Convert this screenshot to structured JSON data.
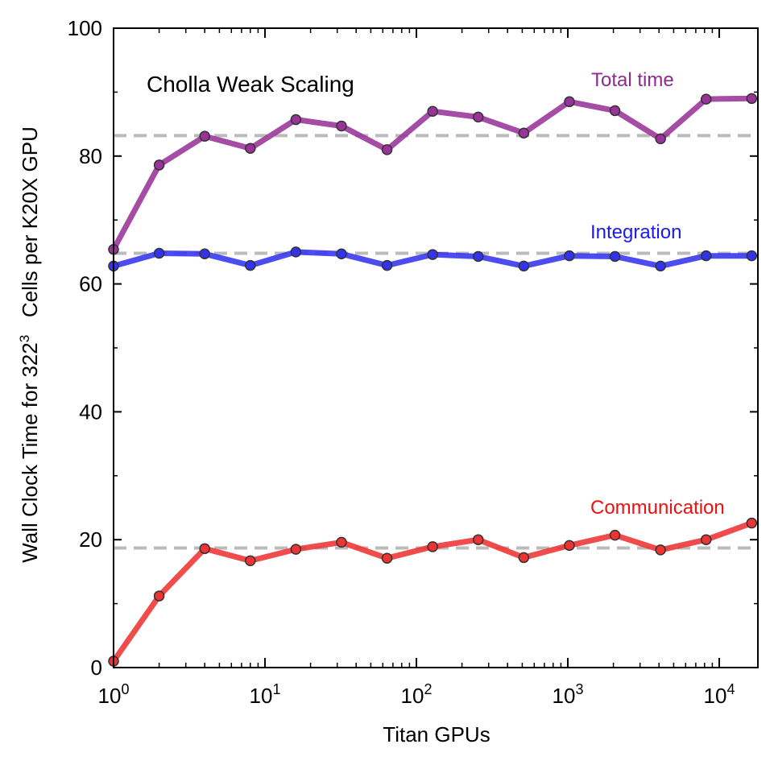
{
  "chart_data": {
    "type": "line",
    "title": "Cholla Weak Scaling",
    "xlabel": "Titan GPUs",
    "ylabel": "Wall Clock Time for 322³ Cells per K20X GPU",
    "xscale": "log",
    "xlim": [
      1,
      18000
    ],
    "ylim": [
      0,
      100
    ],
    "x": [
      1,
      2,
      4,
      8,
      16,
      32,
      64,
      128,
      256,
      512,
      1024,
      2048,
      4096,
      8192,
      16384
    ],
    "x_ticks": [
      {
        "base": "10",
        "exp": "0",
        "value": 1
      },
      {
        "base": "10",
        "exp": "1",
        "value": 10
      },
      {
        "base": "10",
        "exp": "2",
        "value": 100
      },
      {
        "base": "10",
        "exp": "3",
        "value": 1000
      },
      {
        "base": "10",
        "exp": "4",
        "value": 10000
      }
    ],
    "y_ticks": [
      {
        "label": "0",
        "value": 0
      },
      {
        "label": "20",
        "value": 20
      },
      {
        "label": "40",
        "value": 40
      },
      {
        "label": "60",
        "value": 60
      },
      {
        "label": "80",
        "value": 80
      },
      {
        "label": "100",
        "value": 100
      }
    ],
    "reference_lines": [
      83.2,
      64.8,
      18.7
    ],
    "series": [
      {
        "name": "Total time",
        "color": "#993399",
        "values": [
          65.4,
          78.6,
          83.1,
          81.2,
          85.7,
          84.7,
          81.0,
          87.0,
          86.1,
          83.6,
          88.5,
          87.1,
          82.7,
          88.9,
          89.0
        ]
      },
      {
        "name": "Integration",
        "color": "#3333ee",
        "values": [
          62.8,
          64.8,
          64.7,
          62.9,
          65.0,
          64.7,
          62.9,
          64.6,
          64.3,
          62.8,
          64.4,
          64.3,
          62.8,
          64.4,
          64.4
        ]
      },
      {
        "name": "Communication",
        "color": "#ee3333",
        "values": [
          1.0,
          11.2,
          18.6,
          16.7,
          18.5,
          19.6,
          17.1,
          18.9,
          20.0,
          17.2,
          19.1,
          20.7,
          18.4,
          20.0,
          22.6
        ]
      }
    ],
    "label_colors": {
      "Total time": "#8e2a8e",
      "Integration": "#1a1aee",
      "Communication": "#ee1111"
    },
    "reference_line_color": "#bbbbbb",
    "grid": false
  }
}
